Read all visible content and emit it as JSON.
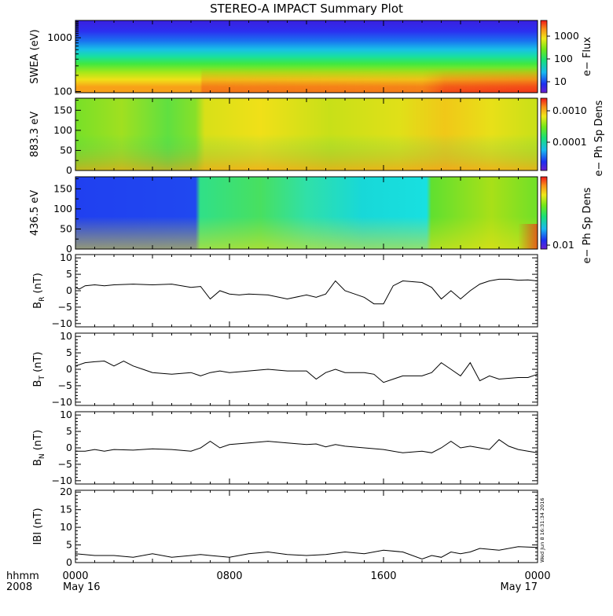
{
  "chart_data": {
    "type": "line",
    "title": "STEREO-A IMPACT Summary Plot",
    "x_axis": {
      "lead_labels": [
        "hhmm",
        "2008"
      ],
      "tick_times": [
        "0000",
        "0800",
        "1600",
        "0000"
      ],
      "tick_dates": [
        "May 16",
        "",
        "",
        "May 17"
      ],
      "range_hours": [
        0,
        24
      ]
    },
    "timestamp": "Wed Jun 8 16:31:34 2016",
    "colors": {
      "line": "#000000",
      "frame": "#000000",
      "background": "#ffffff"
    },
    "spectrograms": [
      {
        "ylabel": "SWEA (eV)",
        "yscale": "log",
        "ylim": [
          95,
          2100
        ],
        "yticks": [
          100,
          1000
        ],
        "ytick_labels": [
          "100",
          "1000"
        ],
        "colorbar_label": "e− Flux",
        "colorbar_scale": "log",
        "colorbar_ticks": [
          "10",
          "100",
          "1000"
        ]
      },
      {
        "ylabel": "883.3 eV",
        "yscale": "linear",
        "ylim": [
          0,
          180
        ],
        "yticks": [
          0,
          50,
          100,
          150
        ],
        "ytick_labels": [
          "0",
          "50",
          "100",
          "150"
        ],
        "colorbar_label": "e− Ph Sp Dens",
        "colorbar_scale": "log",
        "colorbar_ticks": [
          "0.0001",
          "0.0010"
        ]
      },
      {
        "ylabel": "436.5 eV",
        "yscale": "linear",
        "ylim": [
          0,
          180
        ],
        "yticks": [
          0,
          50,
          100,
          150
        ],
        "ytick_labels": [
          "0",
          "50",
          "100",
          "150"
        ],
        "colorbar_label": "e− Ph Sp Dens",
        "colorbar_scale": "log",
        "colorbar_ticks": [
          "0.01"
        ]
      }
    ],
    "series": [
      {
        "name": "B_R",
        "ylabel_main": "B",
        "ylabel_sub": "R",
        "ylabel_unit": " (nT)",
        "ylim": [
          -11,
          11
        ],
        "yticks": [
          -10,
          -5,
          0,
          5,
          10
        ],
        "ytick_labels": [
          "−10",
          "−5",
          "0",
          "5",
          "10"
        ],
        "x_hours": [
          0,
          0.2,
          0.5,
          1,
          1.5,
          2,
          3,
          4,
          5,
          6,
          6.5,
          7,
          7.5,
          8,
          8.5,
          9,
          10,
          11,
          12,
          12.5,
          13,
          13.5,
          14,
          14.5,
          15,
          15.5,
          16,
          16.5,
          17,
          18,
          18.5,
          19,
          19.5,
          20,
          20.5,
          21,
          21.5,
          22,
          22.5,
          23,
          23.5,
          24
        ],
        "values": [
          1,
          0.5,
          1.5,
          1.8,
          1.5,
          1.8,
          2,
          1.8,
          2,
          1,
          1.3,
          -2.5,
          0,
          -1,
          -1.3,
          -1,
          -1.3,
          -2.5,
          -1.3,
          -2,
          -1,
          3,
          0,
          -1,
          -2,
          -4,
          -4,
          1.5,
          3,
          2.5,
          1,
          -2.5,
          0,
          -2.5,
          0,
          2,
          3,
          3.5,
          3.5,
          3.2,
          3.3,
          3
        ]
      },
      {
        "name": "B_T",
        "ylabel_main": "B",
        "ylabel_sub": "T",
        "ylabel_unit": " (nT)",
        "ylim": [
          -11,
          11
        ],
        "yticks": [
          -10,
          -5,
          0,
          5,
          10
        ],
        "ytick_labels": [
          "−10",
          "−5",
          "0",
          "5",
          "10"
        ],
        "x_hours": [
          0,
          0.5,
          1,
          1.5,
          2,
          2.5,
          3,
          3.5,
          4,
          5,
          6,
          6.5,
          7,
          7.5,
          8,
          9,
          10,
          11,
          12,
          12.5,
          13,
          13.5,
          14,
          15,
          15.5,
          16,
          16.5,
          17,
          18,
          18.5,
          19,
          19.5,
          20,
          20.5,
          21,
          21.5,
          22,
          23,
          23.5,
          24
        ],
        "values": [
          1,
          2,
          2.3,
          2.5,
          1,
          2.5,
          1,
          0,
          -1,
          -1.5,
          -1,
          -2,
          -1,
          -0.5,
          -1,
          -0.5,
          0,
          -0.5,
          -0.5,
          -3,
          -1,
          0,
          -1,
          -1,
          -1.5,
          -4,
          -3,
          -2,
          -2,
          -1,
          2,
          0,
          -2,
          2,
          -3.5,
          -2,
          -3,
          -2.5,
          -2.5,
          -1.5
        ]
      },
      {
        "name": "B_N",
        "ylabel_main": "B",
        "ylabel_sub": "N",
        "ylabel_unit": " (nT)",
        "ylim": [
          -11,
          11
        ],
        "yticks": [
          -10,
          -5,
          0,
          5,
          10
        ],
        "ytick_labels": [
          "−10",
          "−5",
          "0",
          "5",
          "10"
        ],
        "x_hours": [
          0,
          0.5,
          1,
          1.5,
          2,
          3,
          4,
          5,
          6,
          6.5,
          7,
          7.5,
          8,
          9,
          10,
          11,
          12,
          12.5,
          13,
          13.5,
          14,
          15,
          16,
          17,
          18,
          18.5,
          19,
          19.5,
          20,
          20.5,
          21,
          21.5,
          22,
          22.5,
          23,
          23.5,
          24
        ],
        "values": [
          -1,
          -1,
          -0.5,
          -1,
          -0.5,
          -0.7,
          -0.3,
          -0.5,
          -1,
          0,
          2,
          0,
          1,
          1.5,
          2,
          1.5,
          1,
          1.2,
          0.3,
          1,
          0.5,
          0,
          -0.5,
          -1.5,
          -1,
          -1.5,
          0,
          2,
          0,
          0.5,
          0,
          -0.5,
          2.5,
          0.5,
          -0.5,
          -1,
          -1.5
        ]
      },
      {
        "name": "|B|",
        "ylabel_main": "IBI",
        "ylabel_sub": "",
        "ylabel_unit": " (nT)",
        "ylim": [
          0,
          20.5
        ],
        "yticks": [
          0,
          5,
          10,
          15,
          20
        ],
        "ytick_labels": [
          "0",
          "5",
          "10",
          "15",
          "20"
        ],
        "x_hours": [
          0,
          1,
          2,
          3,
          4,
          5,
          6,
          6.5,
          7,
          8,
          9,
          10,
          11,
          12,
          13,
          14,
          15,
          16,
          17,
          18,
          18.5,
          19,
          19.5,
          20,
          20.5,
          21,
          22,
          23,
          24
        ],
        "values": [
          2.5,
          2,
          2,
          1.5,
          2.5,
          1.5,
          2,
          2.3,
          2,
          1.5,
          2.5,
          3,
          2.3,
          2,
          2.3,
          3,
          2.5,
          3.5,
          3,
          1,
          2,
          1.5,
          3,
          2.5,
          3,
          4,
          3.5,
          4.5,
          4.3
        ]
      }
    ]
  }
}
